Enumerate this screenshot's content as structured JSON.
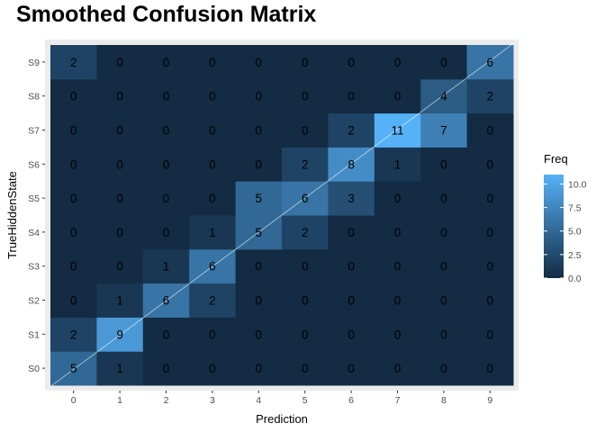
{
  "chart_data": {
    "type": "heatmap",
    "title": "Smoothed Confusion Matrix",
    "xlabel": "Prediction",
    "ylabel": "TrueHiddenState",
    "x_categories": [
      "0",
      "1",
      "2",
      "3",
      "4",
      "5",
      "6",
      "7",
      "8",
      "9"
    ],
    "y_categories": [
      "S0",
      "S1",
      "S2",
      "S3",
      "S4",
      "S5",
      "S6",
      "S7",
      "S8",
      "S9"
    ],
    "matrix": [
      [
        5,
        1,
        0,
        0,
        0,
        0,
        0,
        0,
        0,
        0
      ],
      [
        2,
        9,
        0,
        0,
        0,
        0,
        0,
        0,
        0,
        0
      ],
      [
        0,
        1,
        6,
        2,
        0,
        0,
        0,
        0,
        0,
        0
      ],
      [
        0,
        0,
        1,
        6,
        0,
        0,
        0,
        0,
        0,
        0
      ],
      [
        0,
        0,
        0,
        1,
        5,
        2,
        0,
        0,
        0,
        0
      ],
      [
        0,
        0,
        0,
        0,
        5,
        6,
        3,
        0,
        0,
        0
      ],
      [
        0,
        0,
        0,
        0,
        0,
        2,
        8,
        1,
        0,
        0
      ],
      [
        0,
        0,
        0,
        0,
        0,
        0,
        2,
        11,
        7,
        0
      ],
      [
        0,
        0,
        0,
        0,
        0,
        0,
        0,
        0,
        4,
        2
      ],
      [
        2,
        0,
        0,
        0,
        0,
        0,
        0,
        0,
        0,
        6
      ]
    ],
    "legend": {
      "title": "Freq",
      "ticks": [
        "0.0",
        "2.5",
        "5.0",
        "7.5",
        "10.0"
      ],
      "tick_values": [
        0,
        2.5,
        5,
        7.5,
        10
      ],
      "placement": "right"
    },
    "color_low": "#132B43",
    "color_high": "#56B1F7",
    "value_range": [
      0,
      11
    ],
    "panel_background": "#EBEBEB",
    "diagonal_line_color": "#FFFFFF"
  }
}
